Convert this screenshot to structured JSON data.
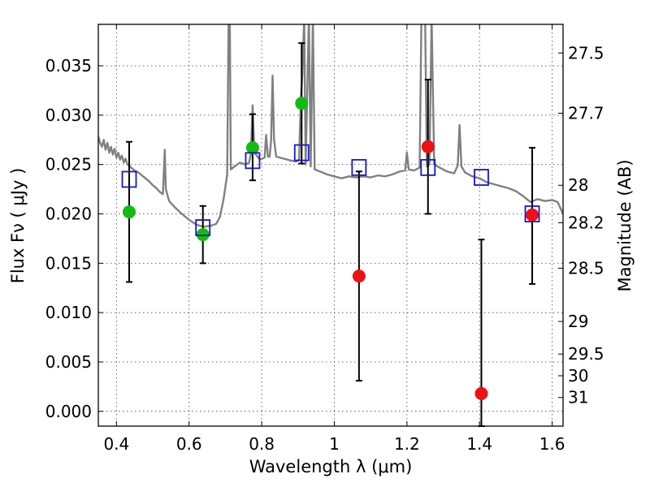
{
  "chart_data": {
    "type": "scatter",
    "xlabel": "Wavelength  λ (μm)",
    "ylabel": "Flux  Fν  ( μJy )",
    "ylabel_right": "Magnitude (AB)",
    "xlim": [
      0.35,
      1.63
    ],
    "ylim": [
      -0.0015,
      0.0392
    ],
    "x_ticks": [
      0.4,
      0.6,
      0.8,
      1,
      1.2,
      1.4,
      1.6
    ],
    "x_tick_labels": [
      "0.4",
      "0.6",
      "0.8",
      "1",
      "1.2",
      "1.4",
      "1.6"
    ],
    "y_ticks": [
      0.0,
      0.005,
      0.01,
      0.015,
      0.02,
      0.025,
      0.03,
      0.035
    ],
    "y_tick_labels": [
      "0.000",
      "0.005",
      "0.010",
      "0.015",
      "0.020",
      "0.025",
      "0.030",
      "0.035"
    ],
    "right_ticks": [
      {
        "label": "27.5",
        "flux": 0.0363
      },
      {
        "label": "27.7",
        "flux": 0.0302
      },
      {
        "label": "28",
        "flux": 0.0229
      },
      {
        "label": "28.2",
        "flux": 0.0191
      },
      {
        "label": "28.5",
        "flux": 0.0145
      },
      {
        "label": "29",
        "flux": 0.0091
      },
      {
        "label": "29.5",
        "flux": 0.0058
      },
      {
        "label": "30",
        "flux": 0.0036
      },
      {
        "label": "31",
        "flux": 0.0014
      }
    ],
    "grid": true,
    "colors": {
      "detection": "#11bb11",
      "upper": "#ee1111",
      "model": "#1515cc",
      "sed": "#808080",
      "errorbar": "#000000"
    },
    "series": [
      {
        "marker": "circle",
        "color": "#11bb11",
        "points": [
          {
            "x": 0.435,
            "y": 0.0202,
            "ylo": 0.0131,
            "yhi": 0.0273
          },
          {
            "x": 0.638,
            "y": 0.0179,
            "ylo": 0.015,
            "yhi": 0.0208
          },
          {
            "x": 0.775,
            "y": 0.0267,
            "ylo": 0.0234,
            "yhi": 0.0301
          },
          {
            "x": 0.91,
            "y": 0.0312,
            "ylo": 0.0251,
            "yhi": 0.0373
          }
        ]
      },
      {
        "marker": "circle",
        "color": "#ee1111",
        "points": [
          {
            "x": 1.068,
            "y": 0.0137,
            "ylo": 0.0031,
            "yhi": 0.0243
          },
          {
            "x": 1.258,
            "y": 0.0268,
            "ylo": 0.02,
            "yhi": 0.0336
          },
          {
            "x": 1.405,
            "y": 0.0018,
            "ylo": -0.0015,
            "yhi": 0.0174
          },
          {
            "x": 1.545,
            "y": 0.0199,
            "ylo": 0.0129,
            "yhi": 0.0267
          }
        ]
      },
      {
        "marker": "open-square",
        "color": "#1515cc",
        "points": [
          {
            "x": 0.435,
            "y": 0.0235
          },
          {
            "x": 0.638,
            "y": 0.0186
          },
          {
            "x": 0.775,
            "y": 0.0254
          },
          {
            "x": 0.91,
            "y": 0.0262
          },
          {
            "x": 1.068,
            "y": 0.0247
          },
          {
            "x": 1.258,
            "y": 0.0247
          },
          {
            "x": 1.405,
            "y": 0.0237
          },
          {
            "x": 1.545,
            "y": 0.02
          }
        ]
      }
    ],
    "sed_curve": [
      [
        0.35,
        0.0278
      ],
      [
        0.355,
        0.0272
      ],
      [
        0.36,
        0.0268
      ],
      [
        0.365,
        0.0275
      ],
      [
        0.37,
        0.0265
      ],
      [
        0.375,
        0.0272
      ],
      [
        0.38,
        0.0262
      ],
      [
        0.385,
        0.0268
      ],
      [
        0.39,
        0.026
      ],
      [
        0.395,
        0.0266
      ],
      [
        0.4,
        0.0257
      ],
      [
        0.405,
        0.0262
      ],
      [
        0.41,
        0.0255
      ],
      [
        0.415,
        0.0259
      ],
      [
        0.42,
        0.0252
      ],
      [
        0.425,
        0.0256
      ],
      [
        0.43,
        0.025
      ],
      [
        0.435,
        0.0249
      ],
      [
        0.44,
        0.0247
      ],
      [
        0.45,
        0.0244
      ],
      [
        0.46,
        0.0242
      ],
      [
        0.47,
        0.0239
      ],
      [
        0.48,
        0.0236
      ],
      [
        0.49,
        0.0233
      ],
      [
        0.5,
        0.0229
      ],
      [
        0.51,
        0.0226
      ],
      [
        0.52,
        0.0222
      ],
      [
        0.528,
        0.022
      ],
      [
        0.533,
        0.0265
      ],
      [
        0.536,
        0.0225
      ],
      [
        0.545,
        0.0213
      ],
      [
        0.56,
        0.0207
      ],
      [
        0.58,
        0.02
      ],
      [
        0.6,
        0.0194
      ],
      [
        0.62,
        0.0189
      ],
      [
        0.64,
        0.0187
      ],
      [
        0.66,
        0.0188
      ],
      [
        0.675,
        0.019
      ],
      [
        0.685,
        0.0197
      ],
      [
        0.695,
        0.0215
      ],
      [
        0.705,
        0.024
      ],
      [
        0.709,
        0.04
      ],
      [
        0.712,
        0.04
      ],
      [
        0.715,
        0.0245
      ],
      [
        0.725,
        0.0248
      ],
      [
        0.74,
        0.0252
      ],
      [
        0.755,
        0.025
      ],
      [
        0.765,
        0.0252
      ],
      [
        0.77,
        0.026
      ],
      [
        0.775,
        0.031
      ],
      [
        0.78,
        0.0262
      ],
      [
        0.795,
        0.0255
      ],
      [
        0.808,
        0.0257
      ],
      [
        0.812,
        0.028
      ],
      [
        0.817,
        0.0258
      ],
      [
        0.822,
        0.0258
      ],
      [
        0.826,
        0.0275
      ],
      [
        0.83,
        0.034
      ],
      [
        0.834,
        0.0275
      ],
      [
        0.84,
        0.0258
      ],
      [
        0.86,
        0.0256
      ],
      [
        0.88,
        0.0254
      ],
      [
        0.895,
        0.0253
      ],
      [
        0.903,
        0.0255
      ],
      [
        0.908,
        0.032
      ],
      [
        0.912,
        0.034
      ],
      [
        0.917,
        0.04
      ],
      [
        0.921,
        0.025
      ],
      [
        0.93,
        0.04
      ],
      [
        0.935,
        0.0248
      ],
      [
        0.941,
        0.04
      ],
      [
        0.946,
        0.0245
      ],
      [
        0.96,
        0.0243
      ],
      [
        0.98,
        0.024
      ],
      [
        1.0,
        0.0238
      ],
      [
        1.02,
        0.0236
      ],
      [
        1.04,
        0.0238
      ],
      [
        1.06,
        0.0237
      ],
      [
        1.08,
        0.0238
      ],
      [
        1.1,
        0.0237
      ],
      [
        1.12,
        0.0239
      ],
      [
        1.14,
        0.0238
      ],
      [
        1.16,
        0.024
      ],
      [
        1.18,
        0.0243
      ],
      [
        1.195,
        0.0244
      ],
      [
        1.2,
        0.0262
      ],
      [
        1.205,
        0.0245
      ],
      [
        1.22,
        0.0244
      ],
      [
        1.235,
        0.0247
      ],
      [
        1.24,
        0.04
      ],
      [
        1.25,
        0.04
      ],
      [
        1.255,
        0.0248
      ],
      [
        1.262,
        0.025
      ],
      [
        1.268,
        0.04
      ],
      [
        1.275,
        0.025
      ],
      [
        1.29,
        0.0247
      ],
      [
        1.31,
        0.0243
      ],
      [
        1.33,
        0.0241
      ],
      [
        1.34,
        0.0249
      ],
      [
        1.345,
        0.029
      ],
      [
        1.35,
        0.0248
      ],
      [
        1.36,
        0.0242
      ],
      [
        1.38,
        0.0238
      ],
      [
        1.4,
        0.0236
      ],
      [
        1.42,
        0.0232
      ],
      [
        1.44,
        0.023
      ],
      [
        1.46,
        0.0228
      ],
      [
        1.48,
        0.0226
      ],
      [
        1.5,
        0.0223
      ],
      [
        1.52,
        0.0218
      ],
      [
        1.54,
        0.0212
      ],
      [
        1.56,
        0.0215
      ],
      [
        1.58,
        0.0213
      ],
      [
        1.6,
        0.0214
      ],
      [
        1.615,
        0.0212
      ],
      [
        1.63,
        0.02
      ]
    ]
  }
}
